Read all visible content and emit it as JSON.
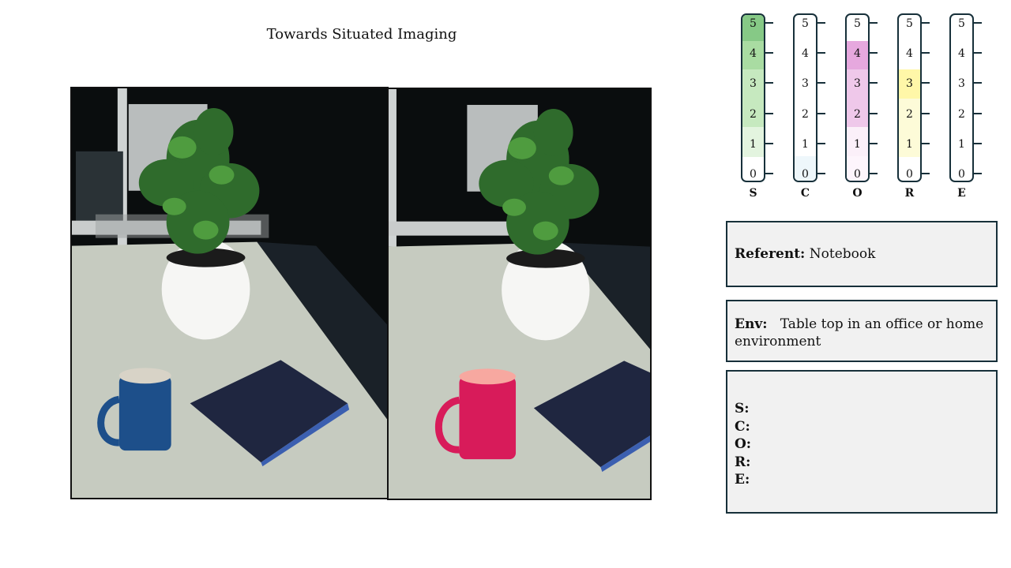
{
  "title": "Towards Situated Imaging",
  "scale": {
    "ticks": [
      "5",
      "4",
      "3",
      "2",
      "1",
      "0"
    ],
    "letters": [
      "S",
      "C",
      "O",
      "R",
      "E"
    ],
    "colors": {
      "S": [
        "#86c986",
        "#a9dca2",
        "#c6e9bf",
        "#c6e9bf",
        "#e3f4df",
        ""
      ],
      "C": [
        "",
        "",
        "",
        "",
        "",
        "#eef7fb"
      ],
      "O": [
        "",
        "#e6a8de",
        "#efc8ea",
        "#efc8ea",
        "#fbf0f9",
        "#fdf5fc"
      ],
      "R": [
        "",
        "",
        "#fff7a8",
        "#fdfbd8",
        "#fdfbd8",
        ""
      ],
      "E": [
        "",
        "",
        "",
        "",
        "",
        ""
      ]
    }
  },
  "referent": {
    "label": "Referent:",
    "value": "Notebook"
  },
  "env": {
    "label": "Env:",
    "value": "Table top in an office or home environment"
  },
  "score_labels": [
    "S:",
    "C:",
    "O:",
    "R:",
    "E:"
  ],
  "images": {
    "left": {
      "mug_color": "#1d4f8a",
      "mug_inner": "#d8d3c7"
    },
    "right": {
      "mug_color": "#d81b5a",
      "mug_inner": "#f7a8a0"
    }
  }
}
